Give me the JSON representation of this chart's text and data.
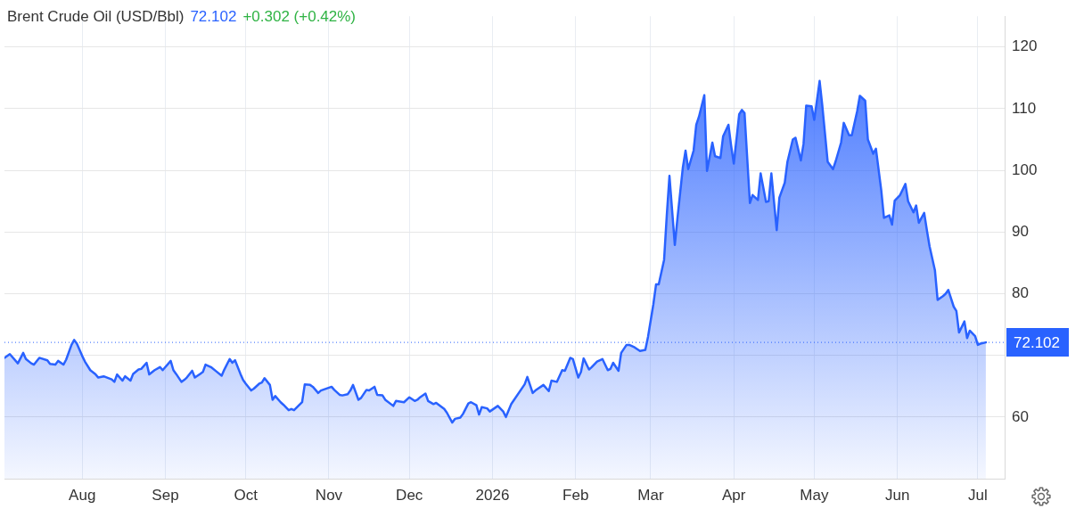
{
  "chart_data": {
    "type": "area",
    "title": "Brent Crude Oil (USD/Bbl)",
    "annotations": [
      "72.102",
      "+0.302 (+0.42%)"
    ],
    "x": [
      "2025-07-03",
      "2025-07-05",
      "2025-07-08",
      "2025-07-10",
      "2025-07-11",
      "2025-07-13",
      "2025-07-14",
      "2025-07-16",
      "2025-07-19",
      "2025-07-20",
      "2025-07-22",
      "2025-07-23",
      "2025-07-25",
      "2025-07-26",
      "2025-07-28",
      "2025-07-29",
      "2025-07-30",
      "2025-08-01",
      "2025-08-02",
      "2025-08-04",
      "2025-08-06",
      "2025-08-07",
      "2025-08-09",
      "2025-08-12",
      "2025-08-13",
      "2025-08-14",
      "2025-08-16",
      "2025-08-17",
      "2025-08-19",
      "2025-08-20",
      "2025-08-22",
      "2025-08-23",
      "2025-08-25",
      "2025-08-26",
      "2025-08-28",
      "2025-08-30",
      "2025-08-31",
      "2025-09-03",
      "2025-09-04",
      "2025-09-05",
      "2025-09-07",
      "2025-09-08",
      "2025-09-09",
      "2025-09-11",
      "2025-09-12",
      "2025-09-14",
      "2025-09-15",
      "2025-09-16",
      "2025-09-18",
      "2025-09-20",
      "2025-09-22",
      "2025-09-23",
      "2025-09-25",
      "2025-09-26",
      "2025-09-27",
      "2025-09-29",
      "2025-09-30",
      "2025-10-01",
      "2025-10-03",
      "2025-10-04",
      "2025-10-06",
      "2025-10-07",
      "2025-10-08",
      "2025-10-10",
      "2025-10-11",
      "2025-10-12",
      "2025-10-14",
      "2025-10-15",
      "2025-10-17",
      "2025-10-18",
      "2025-10-19",
      "2025-10-22",
      "2025-10-23",
      "2025-10-25",
      "2025-10-26",
      "2025-10-28",
      "2025-10-29",
      "2025-11-02",
      "2025-11-03",
      "2025-11-05",
      "2025-11-06",
      "2025-11-08",
      "2025-11-09",
      "2025-11-10",
      "2025-11-12",
      "2025-11-13",
      "2025-11-15",
      "2025-11-16",
      "2025-11-18",
      "2025-11-19",
      "2025-11-21",
      "2025-11-22",
      "2025-11-25",
      "2025-11-26",
      "2025-11-29",
      "2025-12-01",
      "2025-12-03",
      "2025-12-04",
      "2025-12-05",
      "2025-12-07",
      "2025-12-08",
      "2025-12-10",
      "2025-12-11",
      "2025-12-14",
      "2025-12-15",
      "2025-12-17",
      "2025-12-18",
      "2025-12-20",
      "2025-12-21",
      "2025-12-23",
      "2025-12-24",
      "2025-12-26",
      "2025-12-27",
      "2025-12-28",
      "2025-12-30",
      "2025-12-31",
      "2026-01-03",
      "2026-01-05",
      "2026-01-06",
      "2026-01-08",
      "2026-01-13",
      "2026-01-14",
      "2026-01-16",
      "2026-01-17",
      "2026-01-20",
      "2026-01-22",
      "2026-01-23",
      "2026-01-25",
      "2026-01-27",
      "2026-01-28",
      "2026-01-30",
      "2026-01-31",
      "2026-02-02",
      "2026-02-03",
      "2026-02-04",
      "2026-02-06",
      "2026-02-07",
      "2026-02-09",
      "2026-02-11",
      "2026-02-13",
      "2026-02-14",
      "2026-02-15",
      "2026-02-17",
      "2026-02-18",
      "2026-02-20",
      "2026-02-21",
      "2026-02-23",
      "2026-02-25",
      "2026-02-27",
      "2026-02-28",
      "2026-03-02",
      "2026-03-03",
      "2026-03-04",
      "2026-03-06",
      "2026-03-07",
      "2026-03-08",
      "2026-03-10",
      "2026-03-11",
      "2026-03-13",
      "2026-03-14",
      "2026-03-15",
      "2026-03-17",
      "2026-03-18",
      "2026-03-19",
      "2026-03-21",
      "2026-03-22",
      "2026-03-24",
      "2026-03-25",
      "2026-03-27",
      "2026-03-28",
      "2026-03-30",
      "2026-03-31",
      "2026-04-01",
      "2026-04-03",
      "2026-04-04",
      "2026-04-05",
      "2026-04-07",
      "2026-04-08",
      "2026-04-10",
      "2026-04-11",
      "2026-04-13",
      "2026-04-14",
      "2026-04-15",
      "2026-04-17",
      "2026-04-18",
      "2026-04-20",
      "2026-04-21",
      "2026-04-23",
      "2026-04-24",
      "2026-04-26",
      "2026-04-27",
      "2026-04-28",
      "2026-04-30",
      "2026-05-01",
      "2026-05-03",
      "2026-05-04",
      "2026-05-06",
      "2026-05-08",
      "2026-05-09",
      "2026-05-11",
      "2026-05-12",
      "2026-05-14",
      "2026-05-15",
      "2026-05-17",
      "2026-05-18",
      "2026-05-20",
      "2026-05-21",
      "2026-05-23",
      "2026-05-24",
      "2026-05-26",
      "2026-05-27",
      "2026-05-29",
      "2026-05-30",
      "2026-05-31",
      "2026-06-02",
      "2026-06-04",
      "2026-06-05",
      "2026-06-07",
      "2026-06-08",
      "2026-06-09",
      "2026-06-11",
      "2026-06-12",
      "2026-06-13",
      "2026-06-15",
      "2026-06-16",
      "2026-06-18",
      "2026-06-19",
      "2026-06-20",
      "2026-06-22",
      "2026-06-23",
      "2026-06-24",
      "2026-06-26",
      "2026-06-27",
      "2026-06-28",
      "2026-06-30",
      "2026-07-01",
      "2026-07-02",
      "2026-07-04"
    ],
    "values": [
      69.6,
      70.2,
      68.7,
      70.4,
      69.4,
      68.7,
      68.5,
      69.6,
      69.2,
      68.6,
      68.5,
      69.1,
      68.5,
      69.3,
      71.7,
      72.5,
      71.9,
      69.9,
      69.0,
      67.6,
      66.9,
      66.4,
      66.6,
      66.1,
      65.7,
      66.9,
      65.9,
      66.6,
      65.9,
      67.0,
      67.7,
      67.8,
      68.8,
      66.9,
      67.6,
      68.1,
      67.6,
      69.1,
      67.6,
      67.0,
      65.7,
      66.0,
      66.4,
      67.5,
      66.4,
      67.0,
      67.3,
      68.5,
      68.1,
      67.4,
      66.7,
      67.7,
      69.4,
      68.8,
      69.2,
      67.0,
      66.0,
      65.4,
      64.3,
      64.6,
      65.4,
      65.6,
      66.3,
      65.2,
      62.8,
      63.4,
      62.4,
      62.0,
      61.1,
      61.3,
      61.1,
      62.4,
      65.3,
      65.2,
      64.9,
      63.9,
      64.3,
      64.9,
      64.4,
      63.6,
      63.5,
      63.7,
      64.3,
      65.2,
      62.8,
      63.1,
      64.4,
      64.3,
      64.9,
      63.6,
      63.5,
      62.8,
      61.8,
      62.6,
      62.4,
      63.2,
      62.6,
      62.8,
      63.2,
      63.8,
      62.6,
      62.1,
      62.3,
      61.3,
      60.7,
      59.1,
      59.7,
      59.9,
      60.5,
      62.2,
      62.4,
      61.9,
      60.4,
      61.6,
      61.4,
      60.9,
      61.8,
      60.9,
      60.0,
      62.1,
      65.3,
      66.5,
      63.9,
      64.3,
      65.2,
      64.2,
      65.9,
      65.7,
      67.6,
      67.5,
      69.6,
      69.4,
      66.4,
      67.3,
      69.5,
      67.7,
      68.1,
      69.0,
      69.4,
      67.6,
      67.8,
      68.8,
      67.5,
      70.4,
      71.7,
      71.7,
      71.3,
      70.7,
      70.9,
      73.0,
      78.3,
      81.5,
      81.5,
      85.5,
      92.7,
      99.1,
      87.9,
      92.3,
      100.5,
      103.2,
      100.2,
      103.2,
      107.4,
      108.7,
      112.2,
      99.9,
      104.5,
      102.3,
      102.0,
      105.5,
      107.4,
      104.0,
      101.1,
      109.1,
      109.8,
      109.3,
      94.7,
      96.0,
      95.2,
      99.5,
      94.9,
      95.0,
      99.5,
      90.3,
      95.6,
      98.0,
      101.4,
      105.0,
      105.3,
      101.6,
      104.3,
      110.5,
      110.4,
      108.2,
      114.5,
      110.5,
      101.4,
      100.2,
      101.5,
      104.5,
      107.7,
      105.7,
      105.7,
      109.6,
      112.1,
      111.3,
      105.0,
      102.7,
      103.5,
      96.7,
      92.3,
      92.7,
      91.2,
      95.1,
      96.0,
      97.8,
      95.0,
      93.2,
      94.3,
      91.5,
      93.1,
      90.3,
      87.7,
      83.8,
      79.0,
      79.6,
      80.0,
      80.6,
      77.9,
      77.2,
      73.7,
      75.5,
      72.8,
      74.0,
      73.1,
      71.7,
      71.9,
      72.1
    ],
    "color": "#2962ff",
    "marker": "none",
    "xlim": [
      "2025-07-03",
      "2026-07-11"
    ],
    "xticks": [
      {
        "value": "2025-08-01",
        "label": "Aug"
      },
      {
        "value": "2025-09-01",
        "label": "Sep"
      },
      {
        "value": "2025-10-01",
        "label": "Oct"
      },
      {
        "value": "2025-11-01",
        "label": "Nov"
      },
      {
        "value": "2025-12-01",
        "label": "Dec"
      },
      {
        "value": "2026-01-01",
        "label": "2026"
      },
      {
        "value": "2026-02-01",
        "label": "Feb"
      },
      {
        "value": "2026-03-01",
        "label": "Mar"
      },
      {
        "value": "2026-04-01",
        "label": "Apr"
      },
      {
        "value": "2026-05-01",
        "label": "May"
      },
      {
        "value": "2026-06-01",
        "label": "Jun"
      },
      {
        "value": "2026-07-01",
        "label": "Jul"
      }
    ],
    "ylim": [
      50,
      125
    ],
    "yticks": [
      60,
      {
        "value": 70,
        "label": null
      },
      80,
      90,
      100,
      110,
      120
    ],
    "grid": true,
    "ref_lines": [
      {
        "axis": "y",
        "value": 72.102,
        "label": "72.102",
        "color": "#2962ff",
        "line_style": "dotted"
      }
    ]
  }
}
